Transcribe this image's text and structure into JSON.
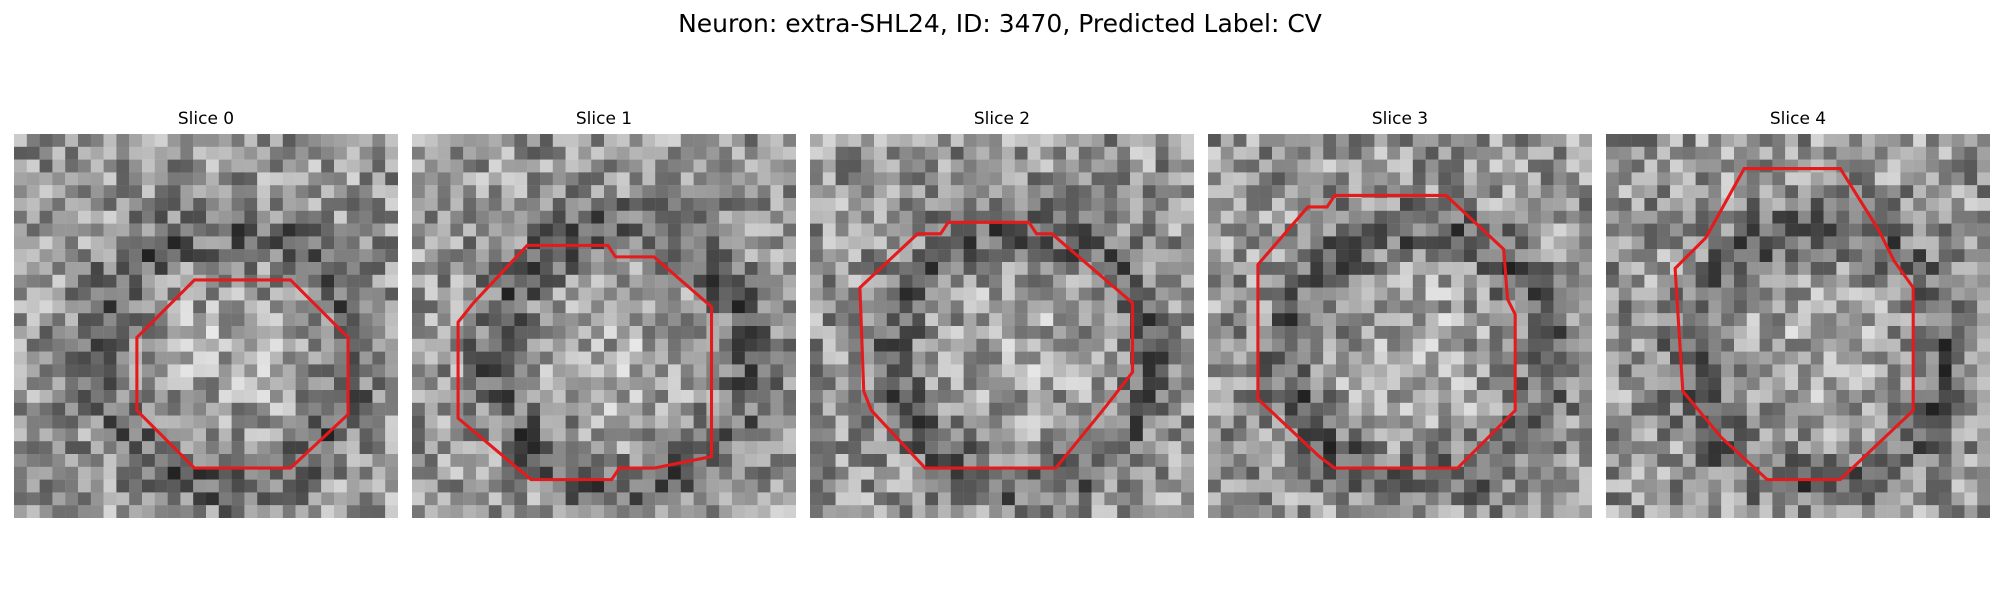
{
  "figure": {
    "title": "Neuron: extra-SHL24, ID: 3470, Predicted Label: CV"
  },
  "panels": [
    {
      "title": "Slice 0",
      "contour_color": "#e41a1c",
      "contour_shape": "octagon",
      "seed": 11,
      "contour_xy": [
        [
          0.47,
          0.38
        ],
        [
          0.72,
          0.38
        ],
        [
          0.87,
          0.53
        ],
        [
          0.87,
          0.73
        ],
        [
          0.72,
          0.87
        ],
        [
          0.47,
          0.87
        ],
        [
          0.32,
          0.72
        ],
        [
          0.32,
          0.53
        ]
      ]
    },
    {
      "title": "Slice 1",
      "contour_color": "#e41a1c",
      "contour_shape": "octagon",
      "seed": 23,
      "contour_xy": [
        [
          0.3,
          0.29
        ],
        [
          0.51,
          0.29
        ],
        [
          0.53,
          0.32
        ],
        [
          0.63,
          0.32
        ],
        [
          0.78,
          0.45
        ],
        [
          0.78,
          0.84
        ],
        [
          0.63,
          0.87
        ],
        [
          0.54,
          0.87
        ],
        [
          0.52,
          0.9
        ],
        [
          0.31,
          0.9
        ],
        [
          0.12,
          0.74
        ],
        [
          0.12,
          0.49
        ],
        [
          0.16,
          0.44
        ]
      ]
    },
    {
      "title": "Slice 2",
      "contour_color": "#e41a1c",
      "contour_shape": "octagon",
      "seed": 37,
      "contour_xy": [
        [
          0.28,
          0.26
        ],
        [
          0.34,
          0.26
        ],
        [
          0.36,
          0.23
        ],
        [
          0.57,
          0.23
        ],
        [
          0.59,
          0.26
        ],
        [
          0.63,
          0.26
        ],
        [
          0.84,
          0.44
        ],
        [
          0.84,
          0.62
        ],
        [
          0.77,
          0.71
        ],
        [
          0.64,
          0.87
        ],
        [
          0.3,
          0.87
        ],
        [
          0.16,
          0.72
        ],
        [
          0.14,
          0.67
        ],
        [
          0.13,
          0.4
        ]
      ]
    },
    {
      "title": "Slice 3",
      "contour_color": "#e41a1c",
      "contour_shape": "octagon",
      "seed": 53,
      "contour_xy": [
        [
          0.26,
          0.19
        ],
        [
          0.31,
          0.19
        ],
        [
          0.33,
          0.16
        ],
        [
          0.62,
          0.16
        ],
        [
          0.77,
          0.3
        ],
        [
          0.78,
          0.43
        ],
        [
          0.8,
          0.47
        ],
        [
          0.8,
          0.72
        ],
        [
          0.65,
          0.87
        ],
        [
          0.33,
          0.87
        ],
        [
          0.29,
          0.84
        ],
        [
          0.13,
          0.69
        ],
        [
          0.13,
          0.34
        ]
      ]
    },
    {
      "title": "Slice 4",
      "contour_color": "#e41a1c",
      "contour_shape": "octagon",
      "seed": 71,
      "contour_xy": [
        [
          0.36,
          0.09
        ],
        [
          0.61,
          0.09
        ],
        [
          0.71,
          0.25
        ],
        [
          0.75,
          0.33
        ],
        [
          0.8,
          0.4
        ],
        [
          0.8,
          0.72
        ],
        [
          0.61,
          0.9
        ],
        [
          0.42,
          0.9
        ],
        [
          0.3,
          0.79
        ],
        [
          0.2,
          0.67
        ],
        [
          0.18,
          0.35
        ],
        [
          0.26,
          0.27
        ]
      ]
    }
  ]
}
